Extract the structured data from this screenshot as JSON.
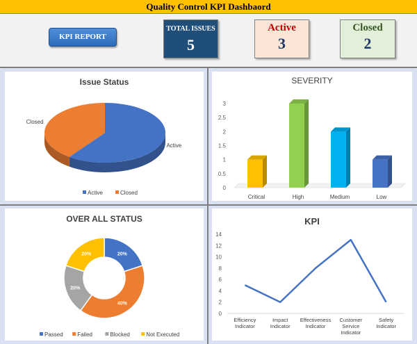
{
  "title": "Quality Control KPI Dashbaord",
  "header": {
    "report_button": "KPI REPORT",
    "total": {
      "label": "TOTAL ISSUES",
      "value": "5"
    },
    "active": {
      "label": "Active",
      "value": "3"
    },
    "closed": {
      "label": "Closed",
      "value": "2"
    }
  },
  "colors": {
    "blue": "#4472c4",
    "orange": "#ed7d31",
    "gray": "#a5a5a5",
    "yellow": "#ffc000",
    "green": "#92d050",
    "cyan": "#00b0f0",
    "title_bar": "#ffc000",
    "total_bg": "#1f4e79"
  },
  "chart_data": [
    {
      "type": "pie",
      "title": "Issue Status",
      "categories": [
        "Active",
        "Closed"
      ],
      "values": [
        3,
        2
      ],
      "legend": "bottom"
    },
    {
      "type": "bar",
      "title": "SEVERITY",
      "categories": [
        "Critical",
        "High",
        "Medium",
        "Low"
      ],
      "values": [
        1,
        3,
        2,
        1
      ],
      "ylim": [
        0,
        3
      ],
      "yticks": [
        "0",
        "0.5",
        "1",
        "1.5",
        "2",
        "2.5",
        "3"
      ],
      "grid": false
    },
    {
      "type": "pie",
      "title": "OVER ALL STATUS",
      "categories": [
        "Passed",
        "Failed",
        "Blocked",
        "Not Executed"
      ],
      "values": [
        20,
        40,
        20,
        20
      ],
      "data_labels": [
        "20%",
        "40%",
        "20%",
        "20%"
      ],
      "legend": "bottom"
    },
    {
      "type": "line",
      "title": "KPI",
      "categories": [
        "Efficiency Indicator",
        "Impact Indicator",
        "Effectiveness Indicator",
        "Customer Service Indicator",
        "Safety Indicator"
      ],
      "values": [
        5,
        2,
        8,
        13,
        2
      ],
      "ylim": [
        0,
        14
      ],
      "yticks": [
        "0",
        "2",
        "4",
        "6",
        "8",
        "10",
        "12",
        "14"
      ],
      "grid": false
    }
  ]
}
